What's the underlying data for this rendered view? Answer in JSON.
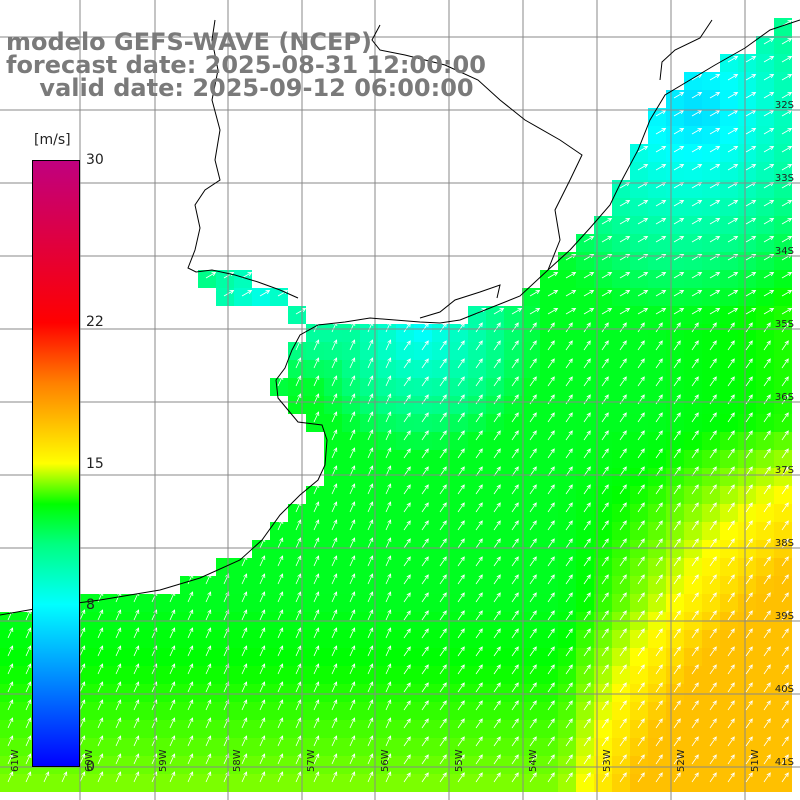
{
  "title": {
    "line1": "modelo GEFS-WAVE (NCEP)",
    "line2": "forecast date: 2025-08-31 12:00:00",
    "line3": "    valid date: 2025-09-12 06:00:00"
  },
  "colorbar": {
    "unit": "[m/s]",
    "min": 0,
    "max": 30,
    "ticks": [
      "30",
      "22",
      "15",
      "8",
      "0"
    ],
    "tick_values": [
      30,
      22,
      15,
      8,
      0
    ],
    "stops": [
      {
        "value": 0,
        "color": "#0000ff"
      },
      {
        "value": 4,
        "color": "#0080ff"
      },
      {
        "value": 8,
        "color": "#00ffff"
      },
      {
        "value": 11,
        "color": "#00ff80"
      },
      {
        "value": 13,
        "color": "#00ff00"
      },
      {
        "value": 15,
        "color": "#ffff00"
      },
      {
        "value": 19,
        "color": "#ff8000"
      },
      {
        "value": 22,
        "color": "#ff0000"
      },
      {
        "value": 30,
        "color": "#c0007f"
      }
    ]
  },
  "lat_labels": [
    "32S",
    "33S",
    "34S",
    "35S",
    "36S",
    "37S",
    "38S",
    "39S",
    "40S",
    "41S"
  ],
  "lon_labels": [
    "61W",
    "60W",
    "59W",
    "58W",
    "57W",
    "56W",
    "55W",
    "54W",
    "53W",
    "52W",
    "51W"
  ],
  "colors": {
    "land": "#ffffff",
    "grid": "#888888",
    "coast": "#000000",
    "arrow": "#ffffff"
  }
}
